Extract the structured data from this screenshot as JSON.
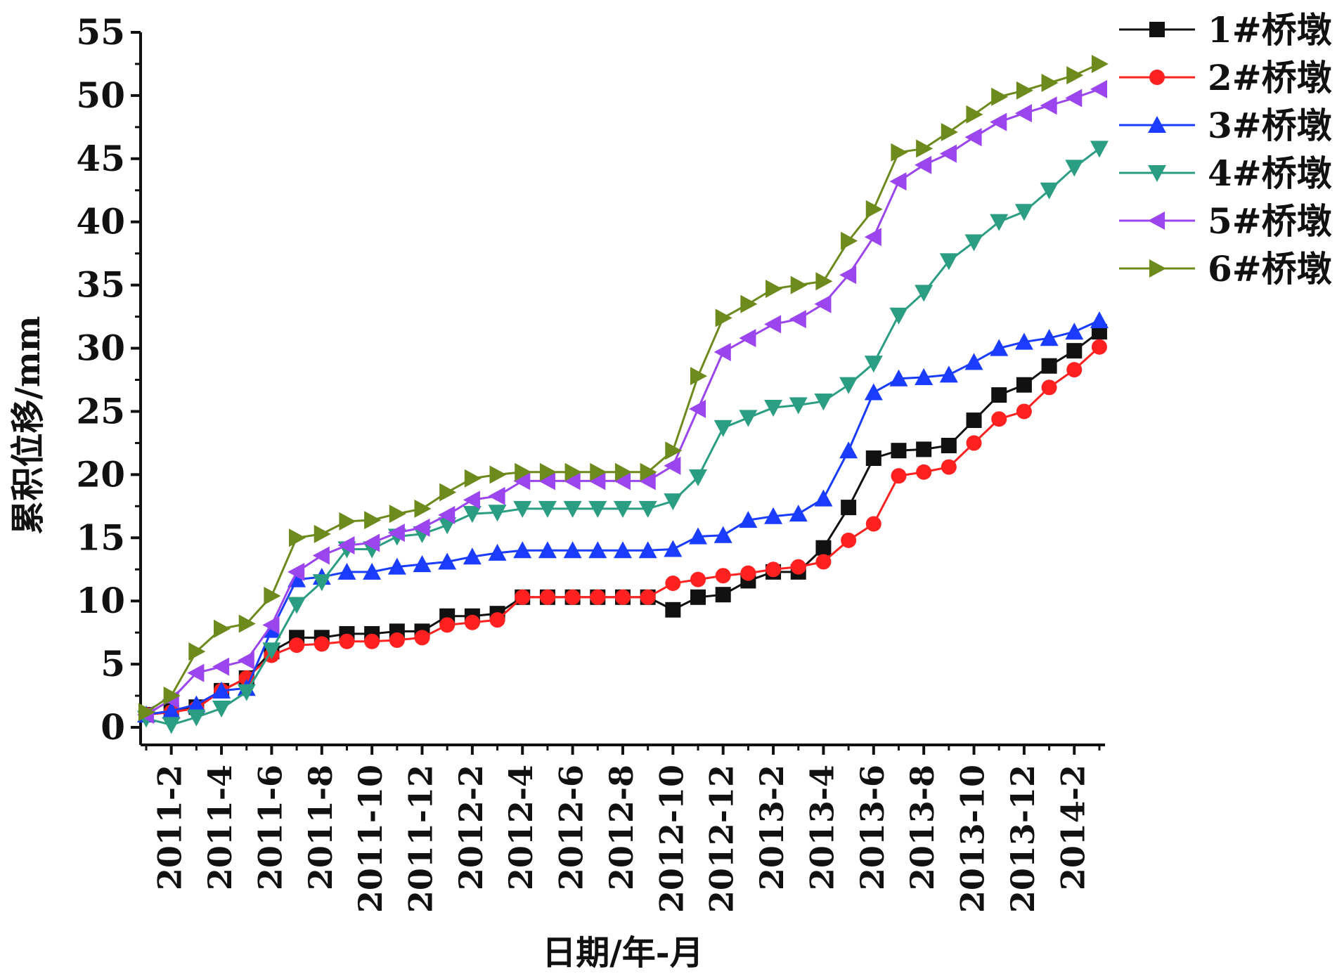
{
  "chart_data": {
    "type": "line",
    "xlabel": "日期/年-月",
    "ylabel": "累积位移/mm",
    "ylim": [
      0,
      55
    ],
    "yticks": [
      0,
      5,
      10,
      15,
      20,
      25,
      30,
      35,
      40,
      45,
      50,
      55
    ],
    "xticks": [
      "2011-2",
      "2011-4",
      "2011-6",
      "2011-8",
      "2011-10",
      "2011-12",
      "2012-2",
      "2012-4",
      "2012-6",
      "2012-8",
      "2012-10",
      "2012-12",
      "2013-2",
      "2013-4",
      "2013-6",
      "2013-8",
      "2013-10",
      "2013-12",
      "2014-2"
    ],
    "x": [
      "2011-1",
      "2011-2",
      "2011-3",
      "2011-4",
      "2011-5",
      "2011-6",
      "2011-7",
      "2011-8",
      "2011-9",
      "2011-10",
      "2011-11",
      "2011-12",
      "2012-1",
      "2012-2",
      "2012-3",
      "2012-4",
      "2012-5",
      "2012-6",
      "2012-7",
      "2012-8",
      "2012-9",
      "2012-10",
      "2012-11",
      "2012-12",
      "2013-1",
      "2013-2",
      "2013-3",
      "2013-4",
      "2013-5",
      "2013-6",
      "2013-7",
      "2013-8",
      "2013-9",
      "2013-10",
      "2013-11",
      "2013-12",
      "2014-1",
      "2014-2",
      "2014-3"
    ],
    "legend_position": "top-right",
    "grid": false,
    "series": [
      {
        "name": "1#桥墩",
        "color": "#111111",
        "marker": "square",
        "values": [
          1.0,
          1.3,
          1.6,
          2.9,
          3.9,
          6.0,
          7.1,
          7.1,
          7.4,
          7.4,
          7.6,
          7.6,
          8.8,
          8.8,
          9.0,
          10.3,
          10.3,
          10.3,
          10.3,
          10.3,
          10.3,
          9.3,
          10.3,
          10.5,
          11.6,
          12.3,
          12.3,
          14.2,
          17.4,
          21.3,
          21.9,
          22.0,
          22.3,
          24.3,
          26.3,
          27.1,
          28.6,
          29.8,
          31.3
        ]
      },
      {
        "name": "2#桥墩",
        "color": "#ff2020",
        "marker": "circle",
        "values": [
          1.0,
          1.2,
          1.5,
          2.9,
          3.9,
          5.7,
          6.5,
          6.6,
          6.8,
          6.8,
          6.9,
          7.1,
          8.1,
          8.3,
          8.5,
          10.3,
          10.3,
          10.3,
          10.3,
          10.3,
          10.3,
          11.4,
          11.7,
          12.0,
          12.2,
          12.5,
          12.7,
          13.1,
          14.8,
          16.1,
          19.9,
          20.2,
          20.6,
          22.5,
          24.4,
          25.0,
          26.9,
          28.3,
          30.1
        ]
      },
      {
        "name": "3#桥墩",
        "color": "#1a3cff",
        "marker": "triangle-up",
        "values": [
          1.0,
          1.3,
          1.8,
          2.9,
          3.1,
          7.7,
          11.7,
          11.9,
          12.3,
          12.3,
          12.7,
          12.9,
          13.1,
          13.5,
          13.8,
          14.0,
          14.0,
          14.0,
          14.0,
          14.0,
          14.0,
          14.1,
          15.1,
          15.2,
          16.4,
          16.7,
          16.9,
          18.1,
          21.9,
          26.5,
          27.6,
          27.7,
          27.9,
          28.9,
          30.0,
          30.5,
          30.8,
          31.3,
          32.2
        ]
      },
      {
        "name": "4#桥墩",
        "color": "#2a9d82",
        "marker": "triangle-down",
        "values": [
          0.7,
          0.2,
          0.8,
          1.5,
          2.8,
          6.1,
          9.7,
          11.5,
          14.1,
          14.1,
          15.1,
          15.3,
          16.0,
          16.9,
          17.0,
          17.3,
          17.3,
          17.3,
          17.3,
          17.3,
          17.3,
          17.9,
          19.8,
          23.7,
          24.5,
          25.3,
          25.5,
          25.8,
          27.1,
          28.8,
          32.6,
          34.4,
          36.9,
          38.4,
          40.0,
          40.8,
          42.5,
          44.3,
          45.8
        ]
      },
      {
        "name": "5#桥墩",
        "color": "#9b45ee",
        "marker": "triangle-left",
        "values": [
          1.0,
          2.2,
          4.3,
          4.8,
          5.3,
          8.1,
          12.3,
          13.6,
          14.4,
          14.6,
          15.4,
          15.8,
          16.8,
          18.0,
          18.3,
          19.5,
          19.5,
          19.5,
          19.5,
          19.5,
          19.5,
          20.7,
          25.2,
          29.7,
          30.8,
          31.9,
          32.3,
          33.5,
          35.8,
          38.8,
          43.2,
          44.5,
          45.4,
          46.7,
          47.9,
          48.6,
          49.2,
          49.8,
          50.5
        ]
      },
      {
        "name": "6#桥墩",
        "color": "#6d8a1d",
        "marker": "triangle-right",
        "values": [
          1.2,
          2.5,
          6.0,
          7.8,
          8.2,
          10.4,
          15.0,
          15.3,
          16.3,
          16.4,
          16.9,
          17.3,
          18.6,
          19.7,
          20.0,
          20.2,
          20.2,
          20.2,
          20.2,
          20.2,
          20.2,
          21.9,
          27.8,
          32.4,
          33.5,
          34.7,
          35.0,
          35.3,
          38.5,
          41.0,
          45.5,
          45.8,
          47.1,
          48.5,
          49.9,
          50.4,
          51.0,
          51.6,
          52.5
        ]
      }
    ]
  }
}
